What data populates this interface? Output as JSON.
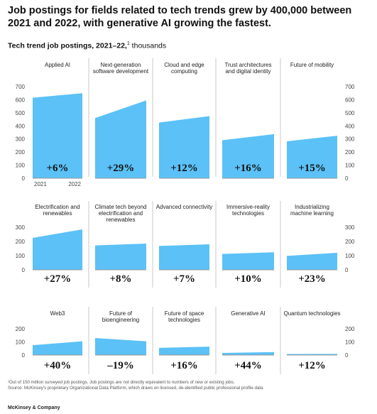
{
  "title": "Job postings for fields related to tech trends grew by 400,000 between 2021 and 2022, with generative AI growing the fastest.",
  "subtitle": {
    "label": "Tech trend job postings, 2021–22,",
    "marker": "1",
    "unit": " thousands"
  },
  "footnote": "¹Out of 150 million surveyed job postings. Job postings are not directly equivalent to numbers of new or existing jobs.",
  "source": "Source: McKinsey's proprietary Organizational Data Platform, which draws on licensed, de-identified public professional profile data",
  "brand": "McKinsey & Company",
  "colors": {
    "area": "#5bc1f7",
    "divider": "#c8c8c8",
    "axis": "#999999",
    "text": "#111111"
  },
  "chart_data": {
    "type": "area",
    "x": [
      "2021",
      "2022"
    ],
    "rows": [
      {
        "ylim": [
          0,
          700
        ],
        "yticks": [
          0,
          100,
          200,
          300,
          400,
          500,
          600,
          700
        ],
        "panels": [
          {
            "name": "Applied AI",
            "values": [
              615,
              650
            ],
            "change": "+6%"
          },
          {
            "name": "Next-generation software development",
            "values": [
              460,
              595
            ],
            "change": "+29%"
          },
          {
            "name": "Cloud and edge computing",
            "values": [
              425,
              475
            ],
            "change": "+12%"
          },
          {
            "name": "Trust architectures and digital identity",
            "values": [
              290,
              337
            ],
            "change": "+16%"
          },
          {
            "name": "Future of mobility",
            "values": [
              282,
              325
            ],
            "change": "+15%"
          }
        ]
      },
      {
        "ylim": [
          0,
          300
        ],
        "yticks": [
          0,
          100,
          200,
          300
        ],
        "panels": [
          {
            "name": "Electrification and renewables",
            "values": [
              225,
              285
            ],
            "change": "+27%"
          },
          {
            "name": "Climate tech beyond electrification and renewables",
            "values": [
              172,
              185
            ],
            "change": "+8%"
          },
          {
            "name": "Advanced connectivity",
            "values": [
              168,
              180
            ],
            "change": "+7%"
          },
          {
            "name": "Immersive-reality technologies",
            "values": [
              112,
              124
            ],
            "change": "+10%"
          },
          {
            "name": "Industrializing machine learning",
            "values": [
              98,
              120
            ],
            "change": "+23%"
          }
        ]
      },
      {
        "ylim": [
          0,
          200
        ],
        "yticks": [
          0,
          100,
          200
        ],
        "panels": [
          {
            "name": "Web3",
            "values": [
              75,
              105
            ],
            "change": "+40%"
          },
          {
            "name": "Future of bioengineering",
            "values": [
              130,
              105
            ],
            "change": "–19%"
          },
          {
            "name": "Future of space technologies",
            "values": [
              55,
              64
            ],
            "change": "+16%"
          },
          {
            "name": "Generative AI",
            "values": [
              16,
              23
            ],
            "change": "+44%"
          },
          {
            "name": "Quantum technologies",
            "values": [
              8,
              9
            ],
            "change": "+12%"
          }
        ]
      }
    ]
  }
}
